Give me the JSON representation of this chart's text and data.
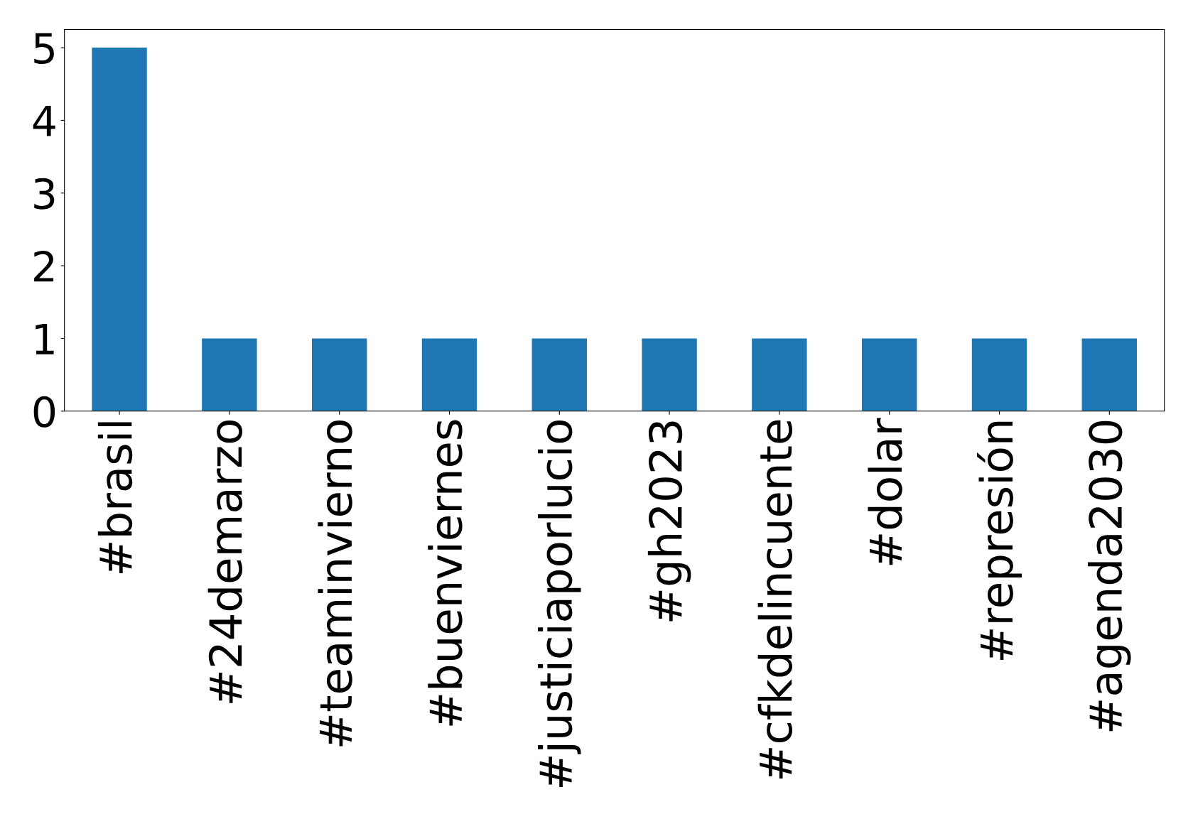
{
  "chart_data": {
    "type": "bar",
    "categories": [
      "#brasil",
      "#24demarzo",
      "#teaminvierno",
      "#buenviernes",
      "#justiciaporlucio",
      "#gh2023",
      "#cfkdelincuente",
      "#dolar",
      "#represión",
      "#agenda2030"
    ],
    "values": [
      5,
      1,
      1,
      1,
      1,
      1,
      1,
      1,
      1,
      1
    ],
    "color": "#1f77b4",
    "ylim": [
      0,
      5.25
    ],
    "yticks": [
      0,
      1,
      2,
      3,
      4,
      5
    ],
    "grid": false
  }
}
